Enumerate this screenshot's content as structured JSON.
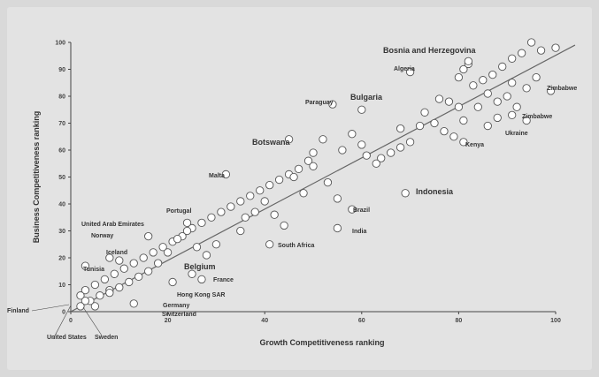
{
  "chart_data": {
    "type": "scatter",
    "xlabel": "Growth Competitiveness ranking",
    "ylabel": "Business Competitiveness ranking",
    "xlim": [
      0,
      100
    ],
    "ylim": [
      0,
      100
    ],
    "x_ticks": [
      0,
      20,
      40,
      60,
      80,
      100
    ],
    "y_ticks": [
      0,
      10,
      20,
      30,
      40,
      50,
      60,
      70,
      80,
      90,
      100
    ],
    "grid": false,
    "trendline": {
      "x": [
        0,
        104
      ],
      "y": [
        0,
        99
      ]
    },
    "points": [
      {
        "x": 95,
        "y": 100
      },
      {
        "x": 97,
        "y": 97
      },
      {
        "x": 100,
        "y": 98
      },
      {
        "x": 93,
        "y": 96
      },
      {
        "x": 91,
        "y": 94
      },
      {
        "x": 89,
        "y": 91
      },
      {
        "x": 87,
        "y": 88
      },
      {
        "x": 85,
        "y": 86
      },
      {
        "x": 83,
        "y": 84
      },
      {
        "x": 96,
        "y": 87
      },
      {
        "x": 94,
        "y": 83
      },
      {
        "x": 91,
        "y": 85
      },
      {
        "x": 90,
        "y": 80
      },
      {
        "x": 86,
        "y": 81
      },
      {
        "x": 81,
        "y": 90
      },
      {
        "x": 82,
        "y": 92
      },
      {
        "x": 80,
        "y": 87
      },
      {
        "x": 78,
        "y": 78
      },
      {
        "x": 80,
        "y": 76
      },
      {
        "x": 84,
        "y": 76
      },
      {
        "x": 88,
        "y": 78
      },
      {
        "x": 92,
        "y": 76
      },
      {
        "x": 88,
        "y": 72
      },
      {
        "x": 94,
        "y": 71
      },
      {
        "x": 81,
        "y": 71
      },
      {
        "x": 76,
        "y": 79
      },
      {
        "x": 73,
        "y": 74
      },
      {
        "x": 72,
        "y": 69
      },
      {
        "x": 75,
        "y": 70
      },
      {
        "x": 77,
        "y": 67
      },
      {
        "x": 79,
        "y": 65
      },
      {
        "x": 68,
        "y": 68
      },
      {
        "x": 70,
        "y": 63
      },
      {
        "x": 68,
        "y": 61
      },
      {
        "x": 66,
        "y": 59
      },
      {
        "x": 64,
        "y": 57
      },
      {
        "x": 63,
        "y": 55
      },
      {
        "x": 61,
        "y": 58
      },
      {
        "x": 58,
        "y": 66
      },
      {
        "x": 60,
        "y": 62
      },
      {
        "x": 56,
        "y": 60
      },
      {
        "x": 52,
        "y": 64
      },
      {
        "x": 50,
        "y": 59
      },
      {
        "x": 49,
        "y": 56
      },
      {
        "x": 47,
        "y": 53
      },
      {
        "x": 45,
        "y": 51
      },
      {
        "x": 43,
        "y": 49
      },
      {
        "x": 41,
        "y": 47
      },
      {
        "x": 39,
        "y": 45
      },
      {
        "x": 37,
        "y": 43
      },
      {
        "x": 35,
        "y": 41
      },
      {
        "x": 33,
        "y": 39
      },
      {
        "x": 31,
        "y": 37
      },
      {
        "x": 29,
        "y": 35
      },
      {
        "x": 27,
        "y": 33
      },
      {
        "x": 25,
        "y": 31
      },
      {
        "x": 23,
        "y": 28
      },
      {
        "x": 21,
        "y": 26
      },
      {
        "x": 19,
        "y": 24
      },
      {
        "x": 17,
        "y": 22
      },
      {
        "x": 15,
        "y": 20
      },
      {
        "x": 13,
        "y": 18
      },
      {
        "x": 11,
        "y": 16
      },
      {
        "x": 9,
        "y": 14
      },
      {
        "x": 7,
        "y": 12
      },
      {
        "x": 5,
        "y": 10
      },
      {
        "x": 3,
        "y": 8
      },
      {
        "x": 2,
        "y": 6
      },
      {
        "x": 4,
        "y": 4
      },
      {
        "x": 40,
        "y": 41
      },
      {
        "x": 38,
        "y": 37
      },
      {
        "x": 36,
        "y": 35
      },
      {
        "x": 35,
        "y": 30
      },
      {
        "x": 42,
        "y": 36
      },
      {
        "x": 44,
        "y": 32
      },
      {
        "x": 48,
        "y": 44
      },
      {
        "x": 46,
        "y": 50
      },
      {
        "x": 50,
        "y": 54
      },
      {
        "x": 53,
        "y": 48
      },
      {
        "x": 55,
        "y": 42
      },
      {
        "x": 24,
        "y": 30
      },
      {
        "x": 22,
        "y": 27
      },
      {
        "x": 26,
        "y": 24
      },
      {
        "x": 28,
        "y": 21
      },
      {
        "x": 30,
        "y": 25
      },
      {
        "x": 20,
        "y": 22
      },
      {
        "x": 18,
        "y": 18
      },
      {
        "x": 16,
        "y": 15
      },
      {
        "x": 14,
        "y": 13
      },
      {
        "x": 12,
        "y": 11
      },
      {
        "x": 10,
        "y": 9
      },
      {
        "x": 8,
        "y": 8
      },
      {
        "x": 6,
        "y": 6
      },
      {
        "x": 70,
        "y": 89,
        "label": "Algeria"
      },
      {
        "x": 54,
        "y": 77,
        "label": "Paraguay"
      },
      {
        "x": 60,
        "y": 75,
        "label": "Bulgaria"
      },
      {
        "x": 45,
        "y": 64,
        "label": "Botswana"
      },
      {
        "x": 32,
        "y": 51,
        "label": "Malta"
      },
      {
        "x": 69,
        "y": 44,
        "label": "Indonesia"
      },
      {
        "x": 58,
        "y": 38,
        "label": "Brazil"
      },
      {
        "x": 55,
        "y": 31,
        "label": "India"
      },
      {
        "x": 41,
        "y": 25,
        "label": "South Africa"
      },
      {
        "x": 24,
        "y": 33,
        "label": "Portugal"
      },
      {
        "x": 16,
        "y": 28,
        "label": "United Arab Emirates"
      },
      {
        "x": 8,
        "y": 20,
        "label": "Norway"
      },
      {
        "x": 10,
        "y": 19,
        "label": "Iceland"
      },
      {
        "x": 3,
        "y": 17,
        "label": "Tunisia"
      },
      {
        "x": 25,
        "y": 14,
        "label": "Belgium"
      },
      {
        "x": 27,
        "y": 12,
        "label": "France"
      },
      {
        "x": 21,
        "y": 11,
        "label": "Hong Kong SAR"
      },
      {
        "x": 13,
        "y": 3,
        "label": "Germany"
      },
      {
        "x": 8,
        "y": 7,
        "label": "Switzerland"
      },
      {
        "x": 3,
        "y": 4,
        "label": "Finland"
      },
      {
        "x": 2,
        "y": 2,
        "label": "United States"
      },
      {
        "x": 5,
        "y": 2,
        "label": "Sweden"
      },
      {
        "x": 81,
        "y": 63,
        "label": "Kenya"
      },
      {
        "x": 86,
        "y": 69,
        "label": "Ukraine"
      },
      {
        "x": 91,
        "y": 73,
        "label": "Zimbabwe"
      },
      {
        "x": 99,
        "y": 82,
        "label": "Zimbabwe"
      },
      {
        "x": 82,
        "y": 93,
        "label": "Bosnia and Herzegovina"
      }
    ]
  },
  "annotations": [
    {
      "text": "Bosnia and Herzegovina",
      "large": true
    },
    {
      "text": "Algeria"
    },
    {
      "text": "Paraguay"
    },
    {
      "text": "Bulgaria",
      "large": true
    },
    {
      "text": "Botswana",
      "large": true
    },
    {
      "text": "Malta"
    },
    {
      "text": "Indonesia",
      "large": true
    },
    {
      "text": "Brazil"
    },
    {
      "text": "India"
    },
    {
      "text": "South Africa"
    },
    {
      "text": "Portugal"
    },
    {
      "text": "United Arab Emirates"
    },
    {
      "text": "Norway"
    },
    {
      "text": "Iceland"
    },
    {
      "text": "Tunisia"
    },
    {
      "text": "Belgium",
      "large": true
    },
    {
      "text": "France"
    },
    {
      "text": "Hong Kong SAR"
    },
    {
      "text": "Germany"
    },
    {
      "text": "Switzerland"
    },
    {
      "text": "Finland"
    },
    {
      "text": "United States"
    },
    {
      "text": "Sweden"
    },
    {
      "text": "Kenya"
    },
    {
      "text": "Ukraine"
    },
    {
      "text": "Zimbabwe"
    },
    {
      "text": "Zimbabwe"
    }
  ],
  "colors": {
    "marker_fill": "#ffffff",
    "marker_stroke": "#555555",
    "trendline": "#666666",
    "axis": "#444444"
  }
}
